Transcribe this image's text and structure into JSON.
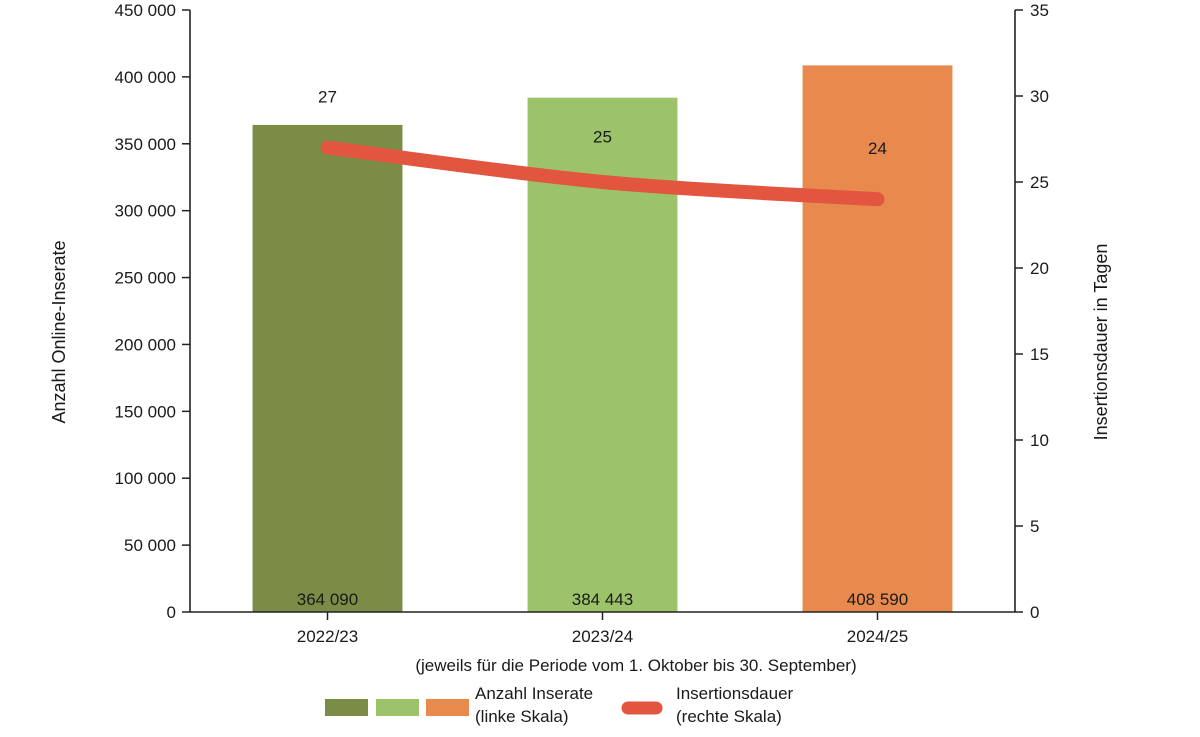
{
  "chart_data": {
    "type": "bar",
    "categories": [
      "2022/23",
      "2023/24",
      "2024/25"
    ],
    "series": [
      {
        "name": "Anzahl Inserate (linke Skala)",
        "type": "bar",
        "axis": "left",
        "values": [
          364090,
          384443,
          408590
        ],
        "value_labels": [
          "364 090",
          "384 443",
          "408 590"
        ],
        "colors": [
          "#7a8c46",
          "#9cc26a",
          "#e8894e"
        ]
      },
      {
        "name": "Insertionsdauer (rechte Skala)",
        "type": "line",
        "axis": "right",
        "values": [
          27,
          25,
          24
        ],
        "value_labels": [
          "27",
          "25",
          "24"
        ],
        "color": "#e2553f"
      }
    ],
    "ylabel": "Anzahl Online-Inserate",
    "y2label": "Insertionsdauer in Tagen",
    "xlabel": "(jeweils für die Periode vom 1. Oktober bis 30. September)",
    "ylim": [
      0,
      450000
    ],
    "y2lim": [
      0,
      35
    ],
    "yticks": [
      "0",
      "50 000",
      "100 000",
      "150 000",
      "200 000",
      "250 000",
      "300 000",
      "350 000",
      "400 000",
      "450 000"
    ],
    "y2ticks": [
      "0",
      "5",
      "10",
      "15",
      "20",
      "25",
      "30",
      "35"
    ],
    "grid": false,
    "legend": {
      "position": "bottom",
      "bar_label_line1": "Anzahl Inserate",
      "bar_label_line2": "(linke Skala)",
      "line_label_line1": "Insertionsdauer",
      "line_label_line2": "(rechte Skala)"
    }
  }
}
